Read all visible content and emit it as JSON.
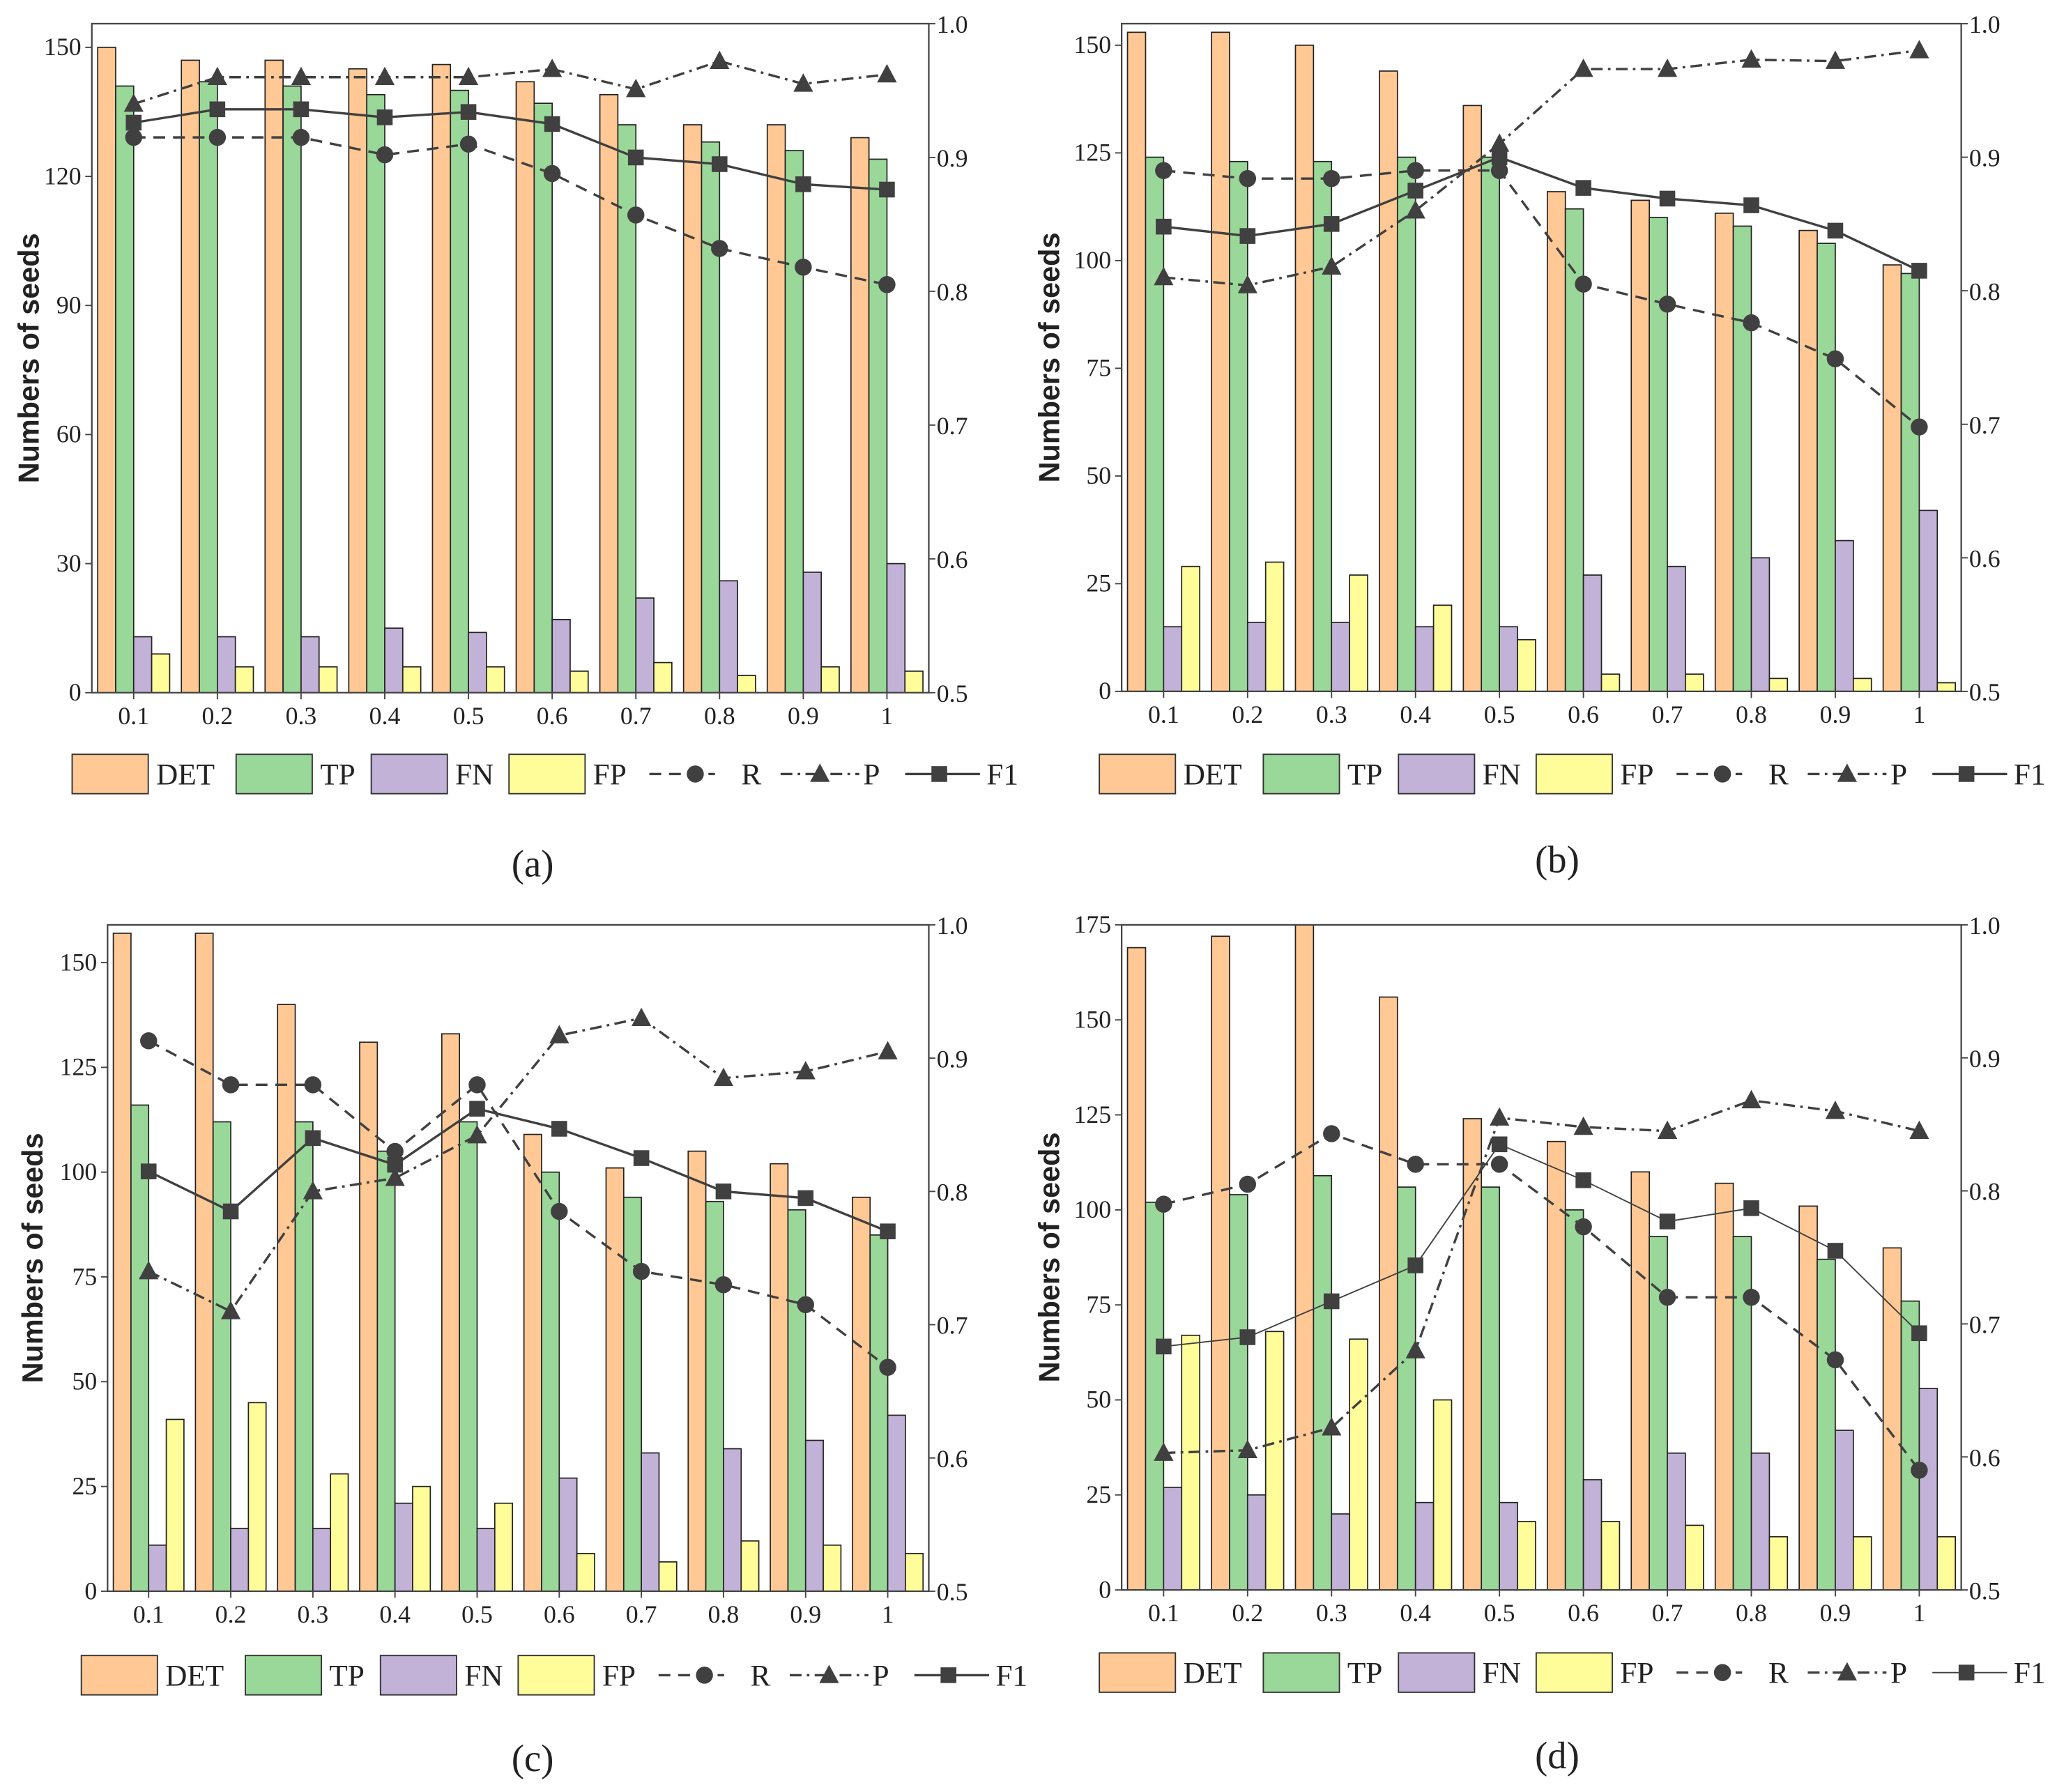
{
  "legend": {
    "det": "DET",
    "tp": "TP",
    "fn": "FN",
    "fp": "FP",
    "r": "R",
    "p": "P",
    "f1": "F1"
  },
  "colors": {
    "det": "#FFC894",
    "tp": "#9AD899",
    "fn": "#C3B2D8",
    "fp": "#FFFD99",
    "line": "#404040"
  },
  "chart_data": [
    {
      "type": "bar",
      "caption": "(a)",
      "ylabel": "Numbers of seeds",
      "categories": [
        "0.1",
        "0.2",
        "0.3",
        "0.4",
        "0.5",
        "0.6",
        "0.7",
        "0.8",
        "0.9",
        "1"
      ],
      "ylim": [
        0,
        155.5
      ],
      "yticks": [
        "0",
        "30",
        "60",
        "90",
        "120",
        "150"
      ],
      "ytick_values": [
        0,
        30,
        60,
        90,
        120,
        150
      ],
      "y2lim": [
        0.5,
        1.0
      ],
      "y2ticks": [
        "0.5",
        "0.6",
        "0.7",
        "0.8",
        "0.9",
        "1.0"
      ],
      "y2tick_values": [
        0.5,
        0.6,
        0.7,
        0.8,
        0.9,
        1.0
      ],
      "series": [
        {
          "name": "DET",
          "values": [
            150,
            147,
            147,
            145,
            146,
            142,
            139,
            132,
            132,
            129
          ]
        },
        {
          "name": "TP",
          "values": [
            141,
            142,
            141,
            139,
            140,
            137,
            132,
            128,
            126,
            124
          ]
        },
        {
          "name": "FN",
          "values": [
            13,
            13,
            13,
            15,
            14,
            17,
            22,
            26,
            28,
            30
          ]
        },
        {
          "name": "FP",
          "values": [
            9,
            6,
            6,
            6,
            6,
            5,
            7,
            4,
            6,
            5
          ]
        }
      ],
      "lines": [
        {
          "name": "R",
          "values": [
            0.915,
            0.915,
            0.915,
            0.902,
            0.91,
            0.888,
            0.857,
            0.832,
            0.818,
            0.805
          ]
        },
        {
          "name": "P",
          "values": [
            0.94,
            0.96,
            0.96,
            0.96,
            0.96,
            0.966,
            0.951,
            0.972,
            0.955,
            0.962
          ]
        },
        {
          "name": "F1",
          "values": [
            0.926,
            0.936,
            0.936,
            0.93,
            0.934,
            0.925,
            0.9,
            0.895,
            0.88,
            0.876
          ]
        }
      ]
    },
    {
      "type": "bar",
      "caption": "(b)",
      "ylabel": "Numbers of seeds",
      "categories": [
        "0.1",
        "0.2",
        "0.3",
        "0.4",
        "0.5",
        "0.6",
        "0.7",
        "0.8",
        "0.9",
        "1"
      ],
      "ylim": [
        0,
        155
      ],
      "yticks": [
        "0",
        "25",
        "50",
        "75",
        "100",
        "125",
        "150"
      ],
      "ytick_values": [
        0,
        25,
        50,
        75,
        100,
        125,
        150
      ],
      "y2lim": [
        0.5,
        1.0
      ],
      "y2ticks": [
        "0.5",
        "0.6",
        "0.7",
        "0.8",
        "0.9",
        "1.0"
      ],
      "y2tick_values": [
        0.5,
        0.6,
        0.7,
        0.8,
        0.9,
        1.0
      ],
      "series": [
        {
          "name": "DET",
          "values": [
            153,
            153,
            150,
            144,
            136,
            116,
            114,
            111,
            107,
            99
          ]
        },
        {
          "name": "TP",
          "values": [
            124,
            123,
            123,
            124,
            124,
            112,
            110,
            108,
            104,
            97
          ]
        },
        {
          "name": "FN",
          "values": [
            15,
            16,
            16,
            15,
            15,
            27,
            29,
            31,
            35,
            42
          ]
        },
        {
          "name": "FP",
          "values": [
            29,
            30,
            27,
            20,
            12,
            4,
            4,
            3,
            3,
            2
          ]
        }
      ],
      "lines": [
        {
          "name": "R",
          "values": [
            0.89,
            0.884,
            0.884,
            0.89,
            0.89,
            0.805,
            0.79,
            0.776,
            0.749,
            0.698
          ]
        },
        {
          "name": "P",
          "values": [
            0.81,
            0.804,
            0.818,
            0.86,
            0.91,
            0.966,
            0.966,
            0.973,
            0.972,
            0.98
          ]
        },
        {
          "name": "F1",
          "values": [
            0.848,
            0.841,
            0.85,
            0.875,
            0.9,
            0.877,
            0.869,
            0.864,
            0.845,
            0.815
          ]
        }
      ]
    },
    {
      "type": "bar",
      "caption": "(c)",
      "ylabel": "Numbers of seeds",
      "categories": [
        "0.1",
        "0.2",
        "0.3",
        "0.4",
        "0.5",
        "0.6",
        "0.7",
        "0.8",
        "0.9",
        "1"
      ],
      "ylim": [
        0,
        159
      ],
      "yticks": [
        "0",
        "25",
        "50",
        "75",
        "100",
        "125",
        "150"
      ],
      "ytick_values": [
        0,
        25,
        50,
        75,
        100,
        125,
        150
      ],
      "y2lim": [
        0.5,
        1.0
      ],
      "y2ticks": [
        "0.5",
        "0.6",
        "0.7",
        "0.8",
        "0.9",
        "1.0"
      ],
      "y2tick_values": [
        0.5,
        0.6,
        0.7,
        0.8,
        0.9,
        1.0
      ],
      "series": [
        {
          "name": "DET",
          "values": [
            157,
            157,
            140,
            131,
            133,
            109,
            101,
            105,
            102,
            94
          ]
        },
        {
          "name": "TP",
          "values": [
            116,
            112,
            112,
            105,
            112,
            100,
            94,
            93,
            91,
            85
          ]
        },
        {
          "name": "FN",
          "values": [
            11,
            15,
            15,
            21,
            15,
            27,
            33,
            34,
            36,
            42
          ]
        },
        {
          "name": "FP",
          "values": [
            41,
            45,
            28,
            25,
            21,
            9,
            7,
            12,
            11,
            9
          ]
        }
      ],
      "lines": [
        {
          "name": "R",
          "values": [
            0.913,
            0.88,
            0.88,
            0.83,
            0.88,
            0.785,
            0.74,
            0.73,
            0.715,
            0.668
          ]
        },
        {
          "name": "P",
          "values": [
            0.74,
            0.71,
            0.8,
            0.81,
            0.842,
            0.917,
            0.93,
            0.885,
            0.89,
            0.905
          ]
        },
        {
          "name": "F1",
          "values": [
            0.815,
            0.785,
            0.84,
            0.82,
            0.862,
            0.847,
            0.825,
            0.8,
            0.795,
            0.77
          ]
        }
      ]
    },
    {
      "type": "bar",
      "caption": "(d)",
      "ylabel": "Numbers of seeds",
      "categories": [
        "0.1",
        "0.2",
        "0.3",
        "0.4",
        "0.5",
        "0.6",
        "0.7",
        "0.8",
        "0.9",
        "1"
      ],
      "ylim": [
        0,
        175
      ],
      "yticks": [
        "0",
        "25",
        "50",
        "75",
        "100",
        "125",
        "150",
        "175"
      ],
      "ytick_values": [
        0,
        25,
        50,
        75,
        100,
        125,
        150,
        175
      ],
      "y2lim": [
        0.5,
        1.0
      ],
      "y2ticks": [
        "0.5",
        "0.6",
        "0.7",
        "0.8",
        "0.9",
        "1.0"
      ],
      "y2tick_values": [
        0.5,
        0.6,
        0.7,
        0.8,
        0.9,
        1.0
      ],
      "series": [
        {
          "name": "DET",
          "values": [
            169,
            172,
            180,
            156,
            124,
            118,
            110,
            107,
            101,
            90
          ]
        },
        {
          "name": "TP",
          "values": [
            102,
            104,
            109,
            106,
            106,
            100,
            93,
            93,
            87,
            76
          ]
        },
        {
          "name": "FN",
          "values": [
            27,
            25,
            20,
            23,
            23,
            29,
            36,
            36,
            42,
            53
          ]
        },
        {
          "name": "FP",
          "values": [
            67,
            68,
            66,
            50,
            18,
            18,
            17,
            14,
            14,
            14
          ]
        }
      ],
      "lines": [
        {
          "name": "R",
          "values": [
            0.79,
            0.805,
            0.843,
            0.82,
            0.82,
            0.773,
            0.72,
            0.72,
            0.673,
            0.59
          ]
        },
        {
          "name": "P",
          "values": [
            0.603,
            0.605,
            0.622,
            0.68,
            0.855,
            0.848,
            0.845,
            0.868,
            0.86,
            0.845
          ]
        },
        {
          "name": "F1",
          "values": [
            0.683,
            0.69,
            0.717,
            0.744,
            0.835,
            0.808,
            0.777,
            0.787,
            0.755,
            0.693
          ]
        }
      ]
    }
  ]
}
